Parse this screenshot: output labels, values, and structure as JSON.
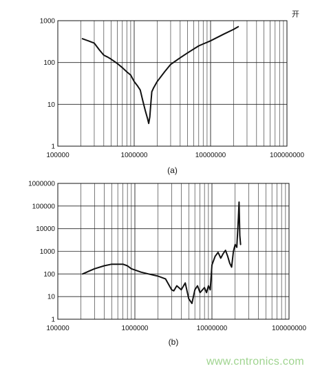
{
  "corner_text": "开",
  "watermark": "www.cntronics.com",
  "chart_data": [
    {
      "type": "line",
      "caption": "(a)",
      "x_scale": "log",
      "y_scale": "log",
      "xlim": [
        100000,
        100000000
      ],
      "ylim": [
        1,
        1000
      ],
      "x_ticks": [
        100000,
        1000000,
        10000000,
        100000000
      ],
      "x_tick_labels": [
        "100000",
        "1000000",
        "10000000",
        "100000000"
      ],
      "y_ticks": [
        1,
        10,
        100,
        1000
      ],
      "y_tick_labels": [
        "1",
        "10",
        "100",
        "1000"
      ],
      "grid": true,
      "series": [
        {
          "color": "#111111",
          "x": [
            210000,
            250000,
            300000,
            350000,
            400000,
            450000,
            500000,
            600000,
            700000,
            800000,
            900000,
            1000000,
            1100000,
            1200000,
            1300000,
            1400000,
            1500000,
            1550000,
            1600000,
            1650000,
            1700000,
            1800000,
            2000000,
            2500000,
            3000000,
            4000000,
            5000000,
            7000000,
            10000000,
            15000000,
            20000000,
            23000000
          ],
          "y": [
            370,
            330,
            290,
            200,
            150,
            135,
            120,
            95,
            75,
            60,
            50,
            35,
            28,
            22,
            12,
            7,
            4.5,
            3.5,
            5,
            10,
            20,
            25,
            35,
            60,
            90,
            130,
            170,
            250,
            330,
            480,
            620,
            720
          ]
        }
      ]
    },
    {
      "type": "line",
      "caption": "(b)",
      "x_scale": "log",
      "y_scale": "log",
      "xlim": [
        100000,
        100000000
      ],
      "ylim": [
        1,
        1000000
      ],
      "x_ticks": [
        100000,
        1000000,
        10000000,
        100000000
      ],
      "x_tick_labels": [
        "100000",
        "1000000",
        "10000000",
        "100000000"
      ],
      "y_ticks": [
        1,
        10,
        100,
        1000,
        10000,
        100000,
        1000000
      ],
      "y_tick_labels": [
        "1",
        "10",
        "100",
        "1000",
        "10000",
        "100000",
        "1000000"
      ],
      "grid": true,
      "series": [
        {
          "color": "#111111",
          "x": [
            210000,
            250000,
            300000,
            400000,
            500000,
            600000,
            700000,
            800000,
            900000,
            1000000,
            1200000,
            1500000,
            2000000,
            2500000,
            3000000,
            3200000,
            3500000,
            4000000,
            4500000,
            5000000,
            5500000,
            6000000,
            6500000,
            7000000,
            8000000,
            8500000,
            9000000,
            9500000,
            10000000,
            11000000,
            12000000,
            13000000,
            14000000,
            15000000,
            16000000,
            17000000,
            18000000,
            19000000,
            20000000,
            21000000,
            22000000,
            22500000,
            23000000,
            23500000
          ],
          "y": [
            100,
            130,
            170,
            230,
            270,
            270,
            270,
            230,
            170,
            150,
            120,
            100,
            80,
            60,
            20,
            18,
            30,
            20,
            40,
            8,
            5,
            20,
            30,
            15,
            25,
            15,
            30,
            20,
            250,
            600,
            900,
            500,
            800,
            1100,
            600,
            300,
            200,
            1000,
            2000,
            1500,
            30000,
            150000,
            5000,
            2000
          ]
        }
      ]
    }
  ]
}
